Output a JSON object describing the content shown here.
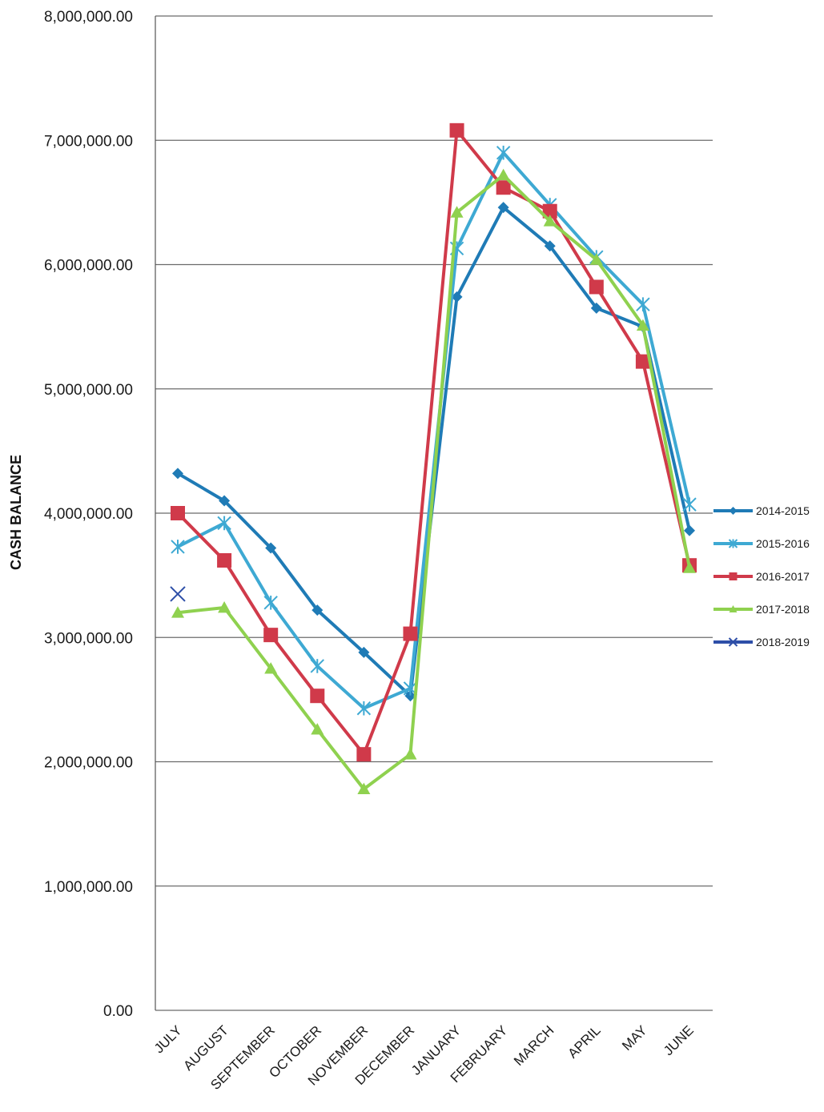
{
  "chart_data": {
    "type": "line",
    "ylabel": "CASH BALANCE",
    "xlabel": "",
    "ylim": [
      0,
      8000000
    ],
    "yticks": [
      0,
      1000000,
      2000000,
      3000000,
      4000000,
      5000000,
      6000000,
      7000000,
      8000000
    ],
    "ytick_labels": [
      "0.00",
      "1,000,000.00",
      "2,000,000.00",
      "3,000,000.00",
      "4,000,000.00",
      "5,000,000.00",
      "6,000,000.00",
      "7,000,000.00",
      "8,000,000.00"
    ],
    "categories": [
      "JULY",
      "AUGUST",
      "SEPTEMBER",
      "OCTOBER",
      "NOVEMBER",
      "DECEMBER",
      "JANUARY",
      "FEBRUARY",
      "MARCH",
      "APRIL",
      "MAY",
      "JUNE"
    ],
    "grid": "horizontal",
    "legend_position": "right",
    "series": [
      {
        "name": "2014-2015",
        "color": "#1f7bb6",
        "marker": "diamond",
        "values": [
          4320000,
          4100000,
          3720000,
          3220000,
          2880000,
          2530000,
          5740000,
          6460000,
          6150000,
          5650000,
          5500000,
          3860000
        ]
      },
      {
        "name": "2015-2016",
        "color": "#3ea9d3",
        "marker": "asterisk",
        "values": [
          3730000,
          3920000,
          3280000,
          2770000,
          2430000,
          2590000,
          6130000,
          6900000,
          6480000,
          6060000,
          5680000,
          4070000
        ]
      },
      {
        "name": "2016-2017",
        "color": "#d03a4a",
        "marker": "square",
        "values": [
          4000000,
          3620000,
          3020000,
          2530000,
          2060000,
          3030000,
          7080000,
          6620000,
          6430000,
          5820000,
          5220000,
          3580000
        ]
      },
      {
        "name": "2017-2018",
        "color": "#8fd14f",
        "marker": "triangle",
        "values": [
          3200000,
          3240000,
          2750000,
          2260000,
          1780000,
          2060000,
          6420000,
          6720000,
          6350000,
          6040000,
          5510000,
          3560000
        ]
      },
      {
        "name": "2018-2019",
        "color": "#2e4fa8",
        "marker": "x",
        "values": [
          3350000,
          null,
          null,
          null,
          null,
          null,
          null,
          null,
          null,
          null,
          null,
          null
        ]
      }
    ]
  }
}
